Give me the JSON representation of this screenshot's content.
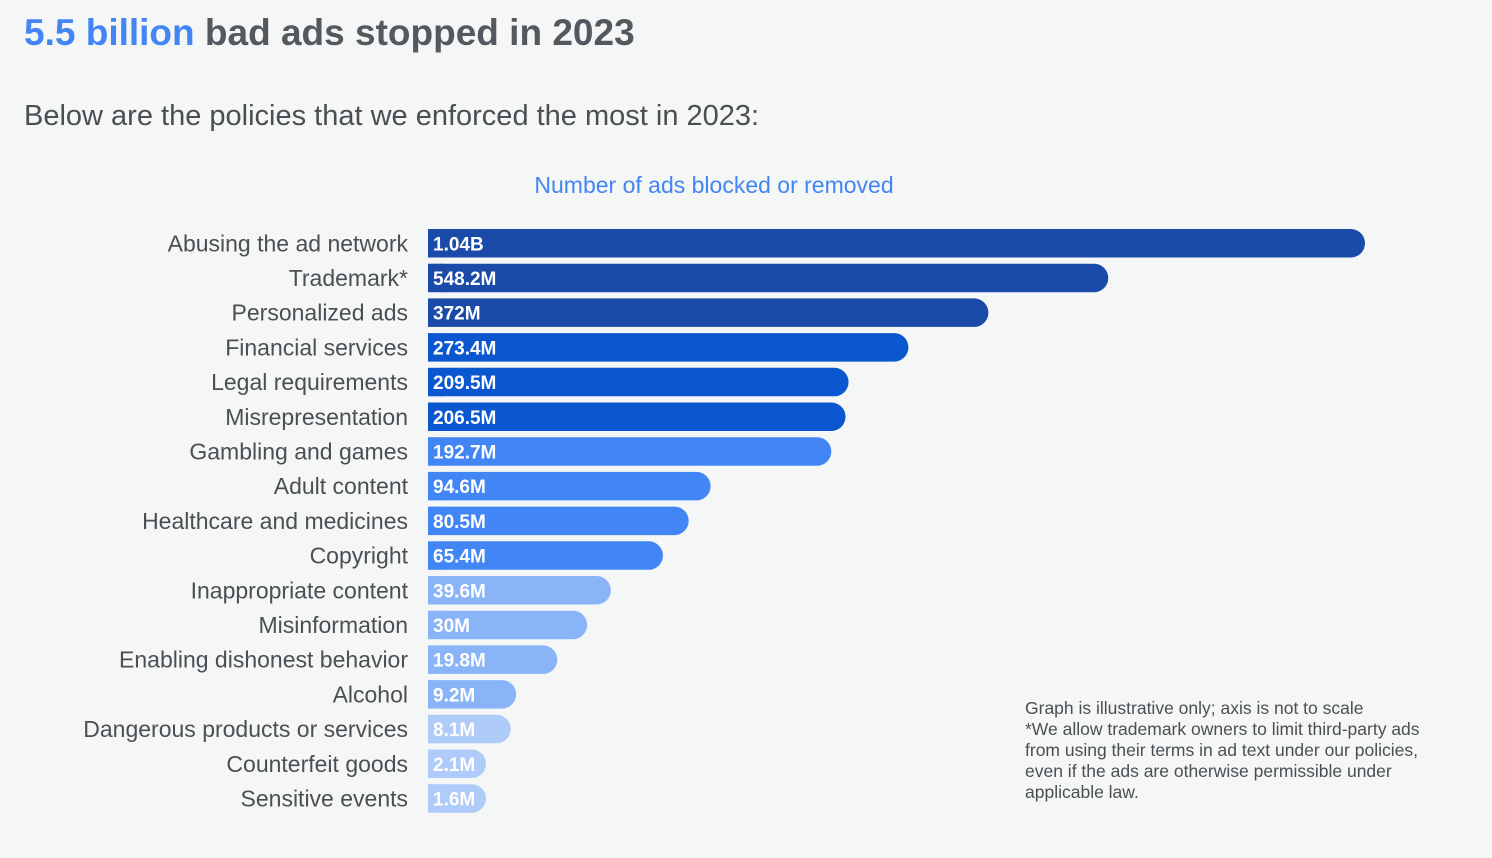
{
  "header": {
    "headline_accent": "5.5 billion",
    "headline_rest": "bad ads stopped in 2023",
    "subtitle": "Below are the policies that we enforced the most in 2023:"
  },
  "chart_data": {
    "type": "bar",
    "orientation": "horizontal",
    "title": "Number of ads blocked or removed",
    "unit": "ads",
    "categories": [
      "Abusing the ad network",
      "Trademark*",
      "Personalized ads",
      "Financial services",
      "Legal requirements",
      "Misrepresentation",
      "Gambling and games",
      "Adult content",
      "Healthcare and medicines",
      "Copyright",
      "Inappropriate content",
      "Misinformation",
      "Enabling dishonest behavior",
      "Alcohol",
      "Dangerous products or services",
      "Counterfeit goods",
      "Sensitive events"
    ],
    "labels": [
      "1.04B",
      "548.2M",
      "372M",
      "273.4M",
      "209.5M",
      "206.5M",
      "192.7M",
      "94.6M",
      "80.5M",
      "65.4M",
      "39.6M",
      "30M",
      "19.8M",
      "9.2M",
      "8.1M",
      "2.1M",
      "1.6M"
    ],
    "values": [
      1040000000,
      548200000,
      372000000,
      273400000,
      209500000,
      206500000,
      192700000,
      94600000,
      80500000,
      65400000,
      39600000,
      30000000,
      19800000,
      9200000,
      8100000,
      2100000,
      1600000
    ],
    "axis_note": "not to scale",
    "colors": [
      "#1a4ba8",
      "#1a4ba8",
      "#1a4ba8",
      "#0b57d0",
      "#0b57d0",
      "#0b57d0",
      "#4285f4",
      "#4285f4",
      "#4285f4",
      "#4285f4",
      "#8ab4f8",
      "#8ab4f8",
      "#8ab4f8",
      "#8ab4f8",
      "#aecbfa",
      "#aecbfa",
      "#aecbfa"
    ]
  },
  "notes": {
    "line1": "Graph is illustrative only; axis is not to scale",
    "line2": "*We allow trademark owners to limit third-party ads from using their terms in ad text under our policies, even if the ads are otherwise permissible under applicable law."
  }
}
